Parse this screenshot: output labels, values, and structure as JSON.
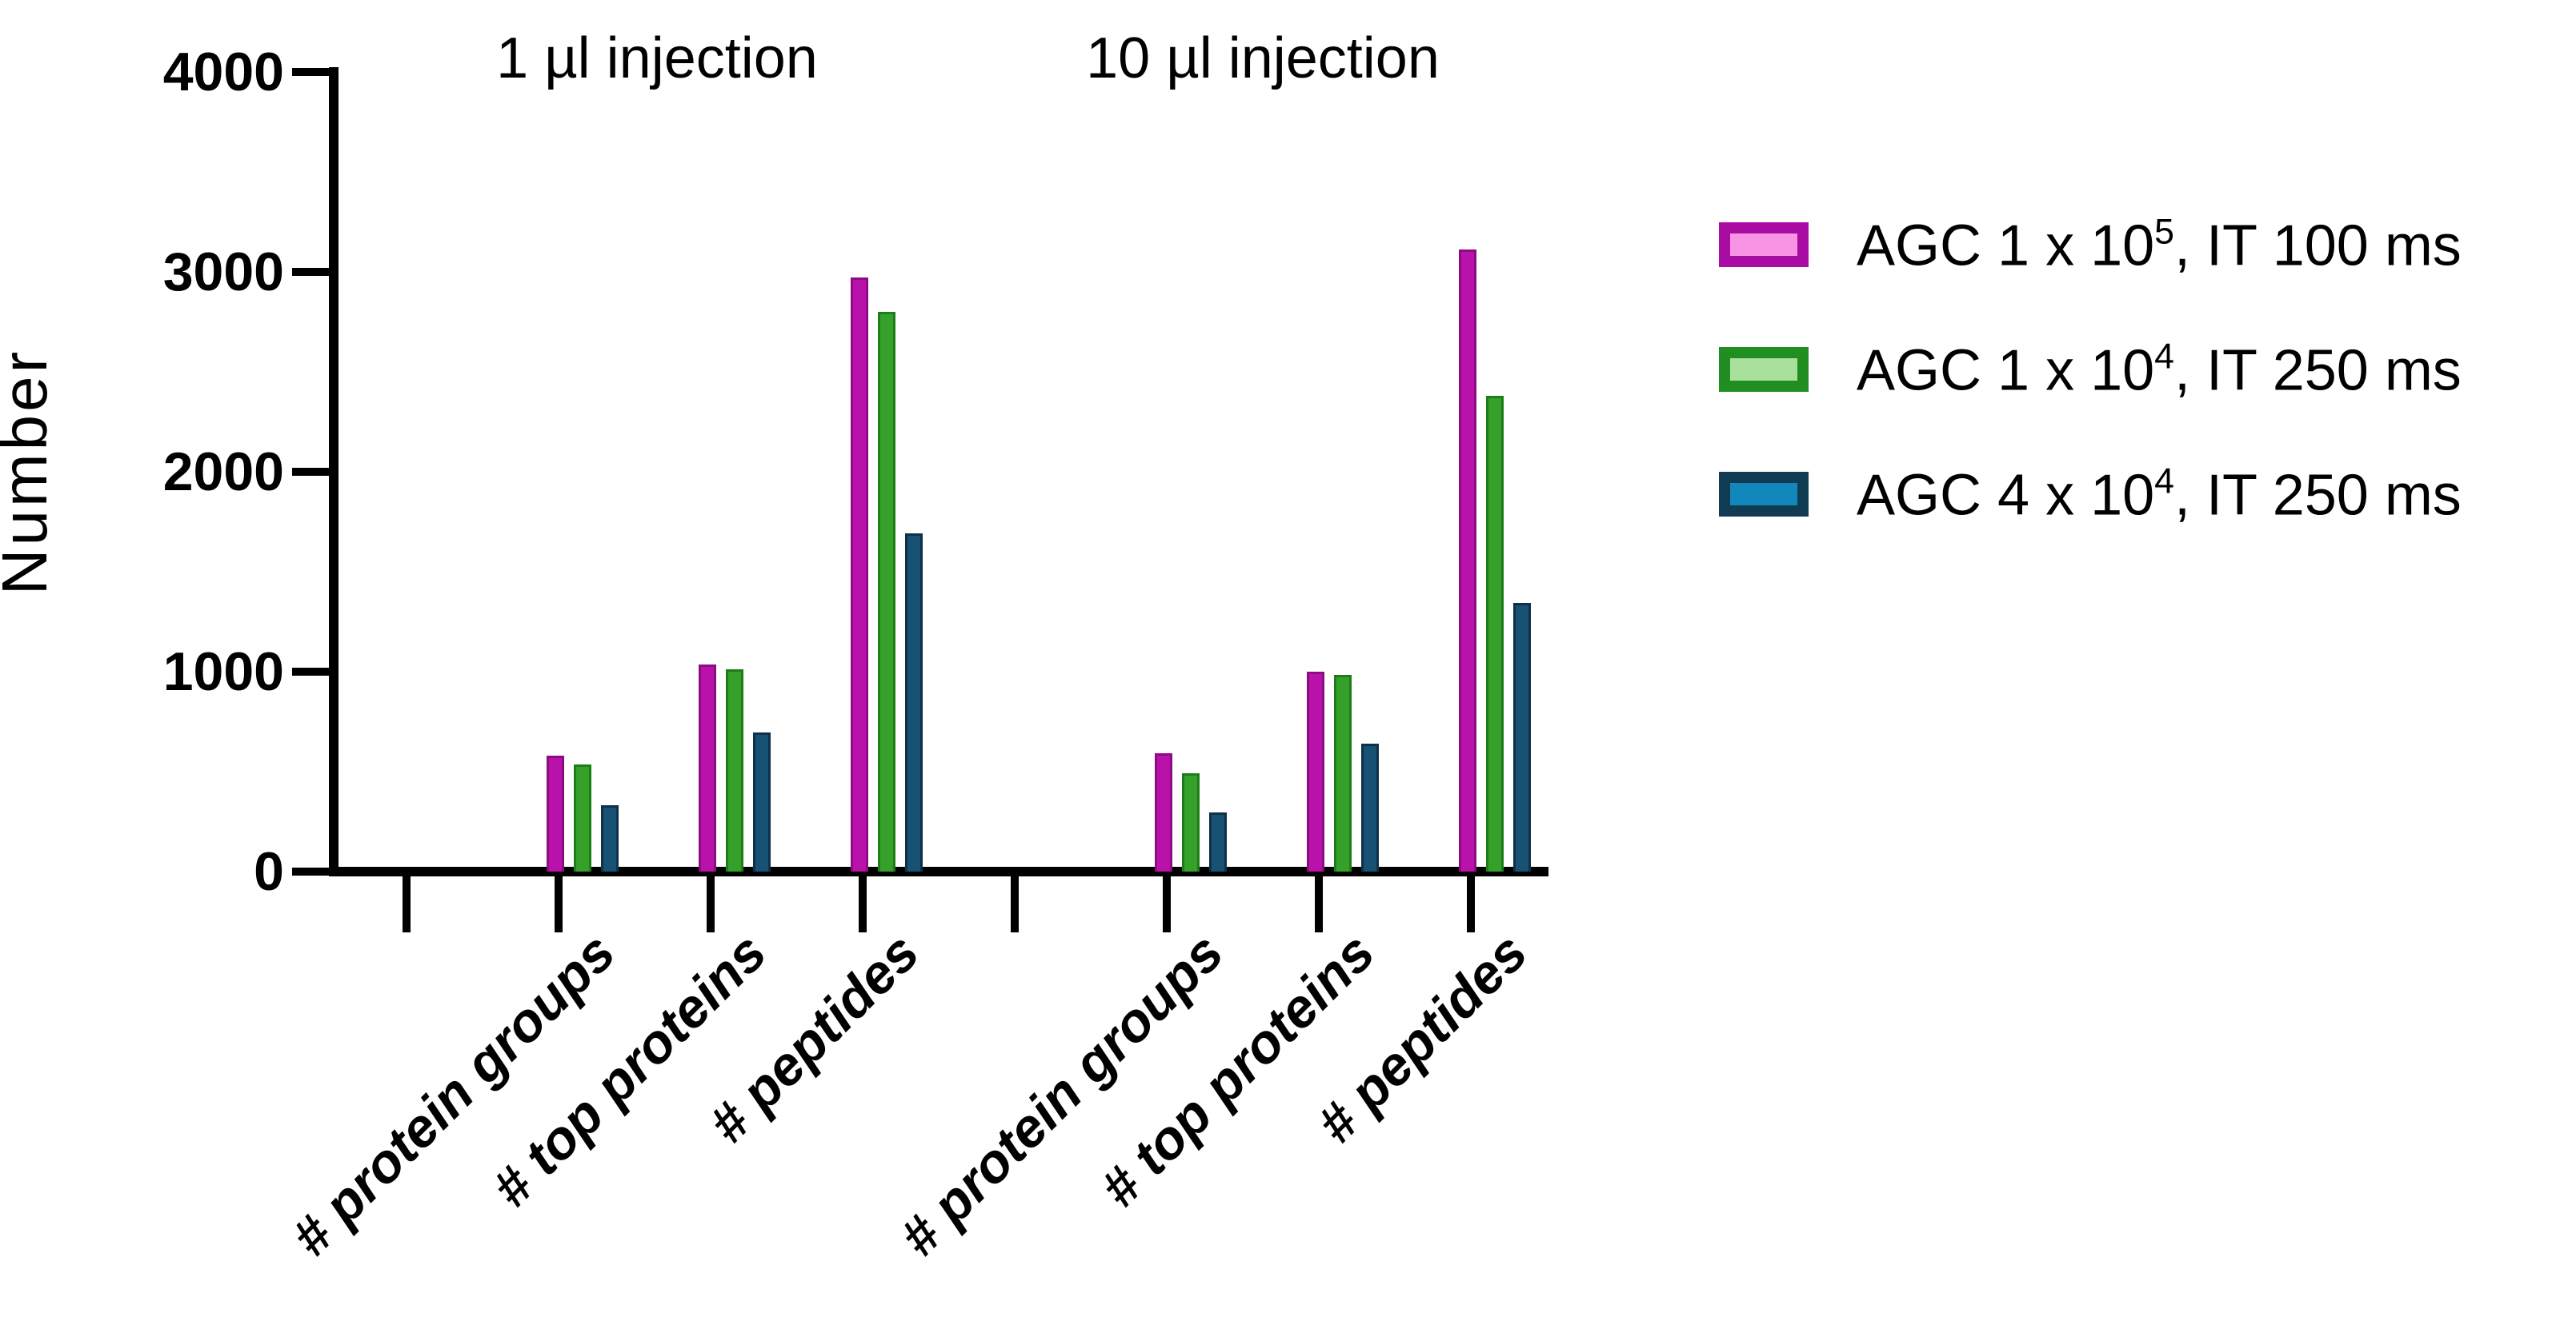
{
  "chart_data": {
    "type": "bar",
    "title": "",
    "ylabel": "Number",
    "xlabel": "",
    "ylim": [
      0,
      4000
    ],
    "yticks": [
      0,
      1000,
      2000,
      3000,
      4000
    ],
    "grid": false,
    "legend_position": "right",
    "panels": [
      {
        "title": "1 µl injection",
        "categories": [
          "# protein groups",
          "# top proteins",
          "# peptides"
        ]
      },
      {
        "title": "10 µl injection",
        "categories": [
          "# protein groups",
          "# top proteins",
          "# peptides"
        ]
      }
    ],
    "series": [
      {
        "name": "AGC 1 x 10^5, IT 100 ms",
        "label_prefix": "AGC 1 x 10",
        "label_exp": "5",
        "label_suffix": ", IT 100 ms",
        "bar_fill": "#b812aa",
        "bar_border": "#8d0c84",
        "legend_fill": "#f894e4",
        "legend_border": "#a80ca2",
        "values": [
          [
            580,
            1035,
            2970
          ],
          [
            590,
            1000,
            3110
          ]
        ]
      },
      {
        "name": "AGC 1 x 10^4, IT 250 ms",
        "label_prefix": "AGC 1 x 10",
        "label_exp": "4",
        "label_suffix": ", IT 250 ms",
        "bar_fill": "#35a02a",
        "bar_border": "#1d7d19",
        "legend_fill": "#a9e09b",
        "legend_border": "#218e21",
        "values": [
          [
            535,
            1010,
            2800
          ],
          [
            490,
            985,
            2380
          ]
        ]
      },
      {
        "name": "AGC 4 x 10^4, IT 250 ms",
        "label_prefix": "AGC 4 x 10",
        "label_exp": "4",
        "label_suffix": ", IT 250 ms",
        "bar_fill": "#175173",
        "bar_border": "#0f3148",
        "legend_fill": "#1187bb",
        "legend_border": "#113b52",
        "values": [
          [
            330,
            695,
            1690
          ],
          [
            295,
            640,
            1345
          ]
        ]
      }
    ]
  }
}
